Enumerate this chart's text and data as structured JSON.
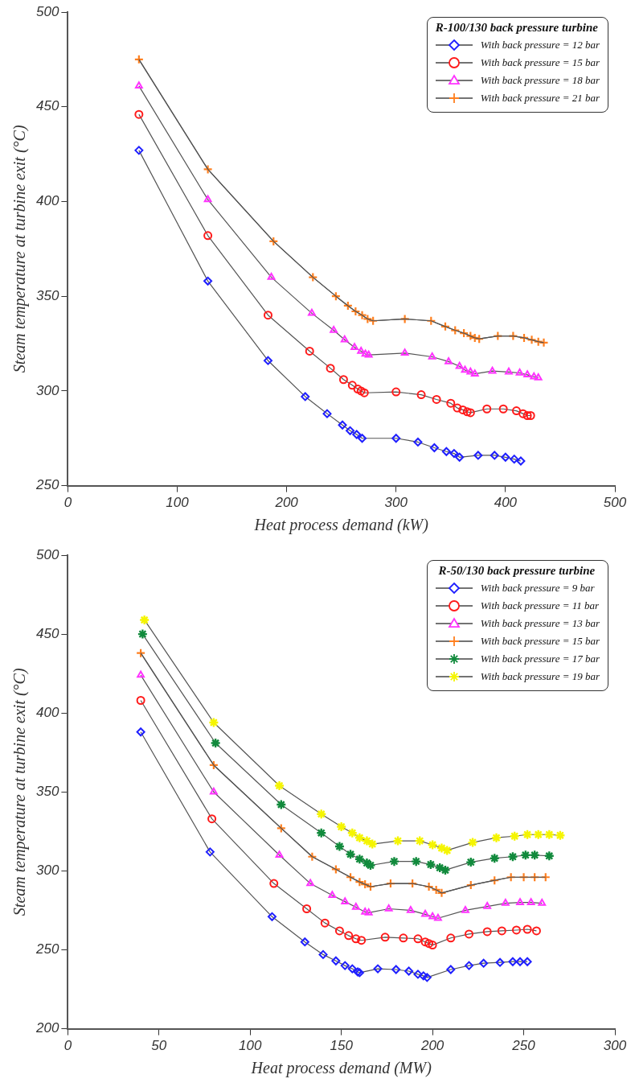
{
  "chart_data": [
    {
      "type": "line",
      "xlabel": "Heat process demand (kW)",
      "ylabel": "Steam temperature at turbine exit (°C)",
      "legend_title": "R-100/130 back pressure turbine",
      "legend": "top right",
      "grid": false,
      "xlim": [
        0,
        500
      ],
      "xticks": [
        0,
        100,
        200,
        300,
        400,
        500
      ],
      "ylim": [
        250,
        500
      ],
      "yticks": [
        250,
        300,
        350,
        400,
        450,
        500
      ],
      "series": [
        {
          "name": "With back pressure = 12 bar",
          "color": "#1f1fff",
          "marker": "diamond",
          "x": [
            65,
            128,
            183,
            217,
            237,
            251,
            258,
            264,
            269,
            300,
            320,
            335,
            346,
            353,
            358,
            375,
            390,
            400,
            408,
            414
          ],
          "values": [
            427,
            358,
            316,
            297,
            288,
            282,
            279,
            277,
            275,
            275,
            273,
            270,
            268,
            267,
            265,
            266,
            266,
            265,
            264,
            263
          ]
        },
        {
          "name": "With back pressure = 15 bar",
          "color": "#ff1a1a",
          "marker": "circle",
          "x": [
            65,
            128,
            183,
            221,
            240,
            252,
            260,
            265,
            268,
            271,
            300,
            323,
            337,
            350,
            356,
            361,
            365,
            368,
            383,
            398,
            410,
            416,
            420,
            423
          ],
          "values": [
            446,
            382,
            340,
            321,
            312,
            306,
            303,
            301,
            300,
            299,
            299.5,
            298,
            295.5,
            293.5,
            291,
            290,
            289,
            288.5,
            290.5,
            290.5,
            289.5,
            288,
            287,
            287
          ]
        },
        {
          "name": "With back pressure = 18 bar",
          "color": "#ff33ff",
          "marker": "triangle",
          "x": [
            65,
            128,
            186,
            223,
            243,
            253,
            262,
            268,
            272,
            275,
            308,
            333,
            348,
            358,
            363,
            368,
            372,
            388,
            403,
            413,
            420,
            426,
            430
          ],
          "values": [
            461,
            401,
            360,
            341,
            332,
            327,
            323,
            321,
            319.5,
            319,
            320,
            318,
            315.5,
            313,
            311,
            310,
            309,
            310.5,
            310,
            309.5,
            308.5,
            307.5,
            307
          ]
        },
        {
          "name": "With back pressure = 21 bar",
          "color": "#ff7f1f",
          "marker": "cross",
          "x": [
            65,
            128,
            188,
            224,
            245,
            256,
            263,
            269,
            274,
            279,
            308,
            332,
            345,
            354,
            362,
            368,
            372,
            376,
            393,
            407,
            417,
            424,
            430,
            435
          ],
          "values": [
            475,
            417,
            379,
            360,
            350,
            345,
            342,
            340,
            338,
            337,
            338,
            337,
            334,
            332,
            330.5,
            329,
            328,
            327.5,
            329,
            329,
            328,
            327,
            326,
            325.5
          ]
        }
      ]
    },
    {
      "type": "line",
      "xlabel": "Heat process demand (MW)",
      "ylabel": "Steam temperature at turbine exit (°C)",
      "legend_title": "R-50/130 back pressure turbine",
      "legend": "top right",
      "grid": false,
      "xlim": [
        0,
        300
      ],
      "xticks": [
        0,
        50,
        100,
        150,
        200,
        250,
        300
      ],
      "ylim": [
        200,
        500
      ],
      "yticks": [
        200,
        250,
        300,
        350,
        400,
        450,
        500
      ],
      "series": [
        {
          "name": "With back pressure = 9 bar",
          "color": "#1f1fff",
          "marker": "diamond",
          "x": [
            40,
            78,
            112,
            130,
            140,
            147,
            152,
            156,
            159,
            160,
            170,
            180,
            187,
            192,
            195,
            197,
            210,
            220,
            228,
            237,
            244,
            248,
            252
          ],
          "values": [
            388,
            312,
            271,
            255,
            247,
            243,
            240,
            238,
            236,
            235.5,
            238,
            237.5,
            236.5,
            234.5,
            233.5,
            232.5,
            237.5,
            240,
            241.5,
            242,
            242.5,
            242.5,
            242.5
          ]
        },
        {
          "name": "With back pressure = 11 bar",
          "color": "#ff1a1a",
          "marker": "circle",
          "x": [
            40,
            79,
            113,
            131,
            141,
            149,
            154,
            158,
            161,
            174,
            184,
            192,
            196,
            198,
            200,
            210,
            220,
            230,
            238,
            246,
            252,
            257
          ],
          "values": [
            408,
            333,
            292,
            276,
            267,
            262,
            259,
            257,
            256,
            258,
            257.5,
            257,
            255,
            254,
            253,
            257.5,
            260,
            261.5,
            262,
            262.5,
            263,
            262
          ]
        },
        {
          "name": "With back pressure = 13 bar",
          "color": "#ff33ff",
          "marker": "triangle",
          "x": [
            40,
            80,
            116,
            133,
            145,
            152,
            158,
            163,
            165,
            176,
            188,
            196,
            200,
            203,
            218,
            230,
            240,
            248,
            254,
            260
          ],
          "values": [
            424,
            350,
            310,
            292,
            284.5,
            280.5,
            277,
            274,
            273.5,
            276,
            275,
            272.5,
            271,
            270,
            275,
            277.5,
            279.5,
            280,
            280,
            279.5
          ]
        },
        {
          "name": "With back pressure = 15 bar",
          "color": "#ff7f1f",
          "marker": "cross",
          "x": [
            40,
            80,
            117,
            134,
            147,
            155,
            160,
            163,
            166,
            177,
            189,
            198,
            202,
            205,
            221,
            234,
            243,
            250,
            256,
            262
          ],
          "values": [
            438,
            367,
            327,
            309,
            301,
            296,
            293,
            291.5,
            290,
            292,
            292,
            290,
            288,
            286,
            291,
            294,
            296,
            296,
            296,
            296
          ]
        },
        {
          "name": "With back pressure = 17 bar",
          "color": "#118a3c",
          "marker": "cross",
          "x": [
            41,
            81,
            117,
            139,
            149,
            155,
            160,
            164,
            166,
            179,
            191,
            199,
            204,
            207,
            221,
            234,
            244,
            251,
            256,
            264
          ],
          "values": [
            450,
            381,
            342,
            324,
            315.5,
            310.5,
            307.5,
            305,
            303.5,
            306,
            306,
            304,
            302,
            300.5,
            305.5,
            308,
            309,
            310,
            310,
            309.5
          ]
        },
        {
          "name": "With back pressure = 19 bar",
          "color": "#f5f500",
          "marker": "cross",
          "x": [
            42,
            80,
            116,
            139,
            150,
            156,
            160,
            164,
            167,
            181,
            193,
            200,
            205,
            208,
            222,
            235,
            245,
            252,
            258,
            264,
            270
          ],
          "values": [
            459,
            394,
            354,
            336,
            328,
            324,
            321,
            319,
            317,
            319,
            319,
            316.5,
            314.5,
            313,
            318,
            321,
            322,
            323,
            323,
            323,
            322.5
          ]
        }
      ]
    }
  ]
}
